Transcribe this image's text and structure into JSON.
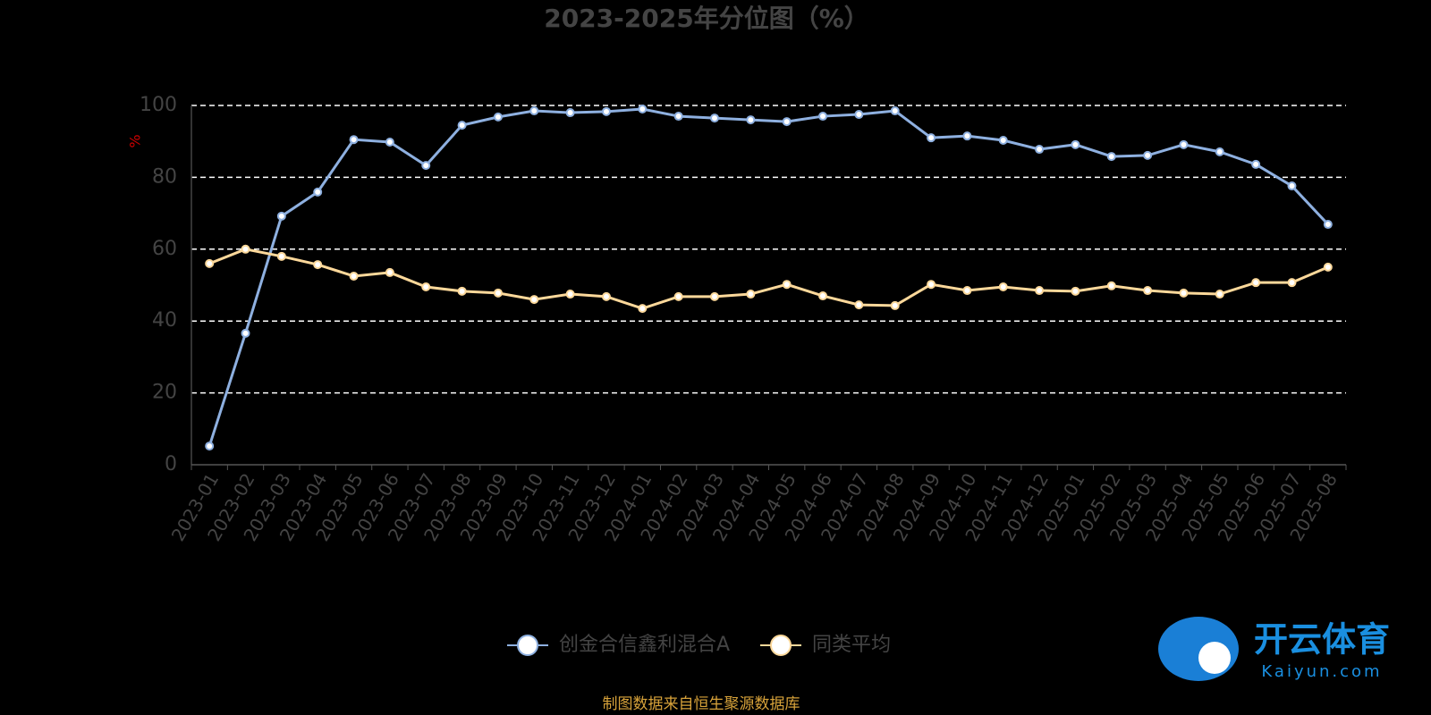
{
  "chart_data": {
    "type": "line",
    "title": "2023-2025年分位图（%）",
    "y_label": "%",
    "categories": [
      "2023-01",
      "2023-02",
      "2023-03",
      "2023-04",
      "2023-05",
      "2023-06",
      "2023-07",
      "2023-08",
      "2023-09",
      "2023-10",
      "2023-11",
      "2023-12",
      "2024-01",
      "2024-02",
      "2024-03",
      "2024-04",
      "2024-05",
      "2024-06",
      "2024-07",
      "2024-08",
      "2024-09",
      "2024-10",
      "2024-11",
      "2024-12",
      "2025-01",
      "2025-02",
      "2025-03",
      "2025-04",
      "2025-05",
      "2025-06",
      "2025-07",
      "2025-08"
    ],
    "series": [
      {
        "name": "创金合信鑫利混合A",
        "color": "#8eb0e0",
        "values": [
          5.2,
          36.6,
          69.2,
          75.9,
          90.5,
          89.8,
          83.3,
          94.5,
          96.8,
          98.5,
          98.0,
          98.3,
          99.0,
          97.0,
          96.5,
          96.0,
          95.5,
          97.0,
          97.5,
          98.5,
          91.0,
          91.5,
          90.3,
          87.8,
          89.1,
          85.8,
          86.1,
          89.1,
          87.1,
          83.6,
          77.6,
          66.9
        ]
      },
      {
        "name": "同类平均",
        "color": "#fcd89a",
        "values": [
          56.0,
          60.0,
          58.0,
          55.7,
          52.5,
          53.5,
          49.5,
          48.3,
          47.8,
          46.0,
          47.5,
          46.8,
          43.5,
          46.8,
          46.8,
          47.5,
          50.2,
          47.0,
          44.5,
          44.3,
          50.2,
          48.5,
          49.5,
          48.5,
          48.3,
          49.8,
          48.5,
          47.8,
          47.5,
          50.7,
          50.7,
          55.0
        ]
      }
    ],
    "ylim": [
      0,
      100
    ],
    "yticks": [
      0,
      20,
      40,
      60,
      80,
      100
    ],
    "grid": true,
    "source": "制图数据来自恒生聚源数据库",
    "watermark": {
      "text": "开云体育",
      "sub": "Kaiyun.com"
    }
  }
}
